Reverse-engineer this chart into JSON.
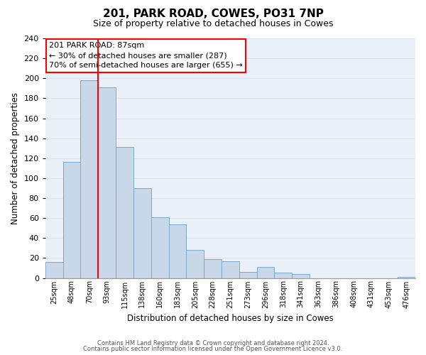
{
  "title": "201, PARK ROAD, COWES, PO31 7NP",
  "subtitle": "Size of property relative to detached houses in Cowes",
  "xlabel": "Distribution of detached houses by size in Cowes",
  "ylabel": "Number of detached properties",
  "bar_labels": [
    "25sqm",
    "48sqm",
    "70sqm",
    "93sqm",
    "115sqm",
    "138sqm",
    "160sqm",
    "183sqm",
    "205sqm",
    "228sqm",
    "251sqm",
    "273sqm",
    "296sqm",
    "318sqm",
    "341sqm",
    "363sqm",
    "386sqm",
    "408sqm",
    "431sqm",
    "453sqm",
    "476sqm"
  ],
  "bar_heights": [
    16,
    116,
    198,
    191,
    131,
    90,
    61,
    54,
    28,
    19,
    17,
    6,
    11,
    5,
    4,
    0,
    0,
    0,
    0,
    0,
    1
  ],
  "bar_color": "#c8d8e8",
  "bar_edge_color": "#7aa8cc",
  "ylim": [
    0,
    240
  ],
  "yticks": [
    0,
    20,
    40,
    60,
    80,
    100,
    120,
    140,
    160,
    180,
    200,
    220,
    240
  ],
  "vline_color": "red",
  "vline_x": 2.5,
  "annotation_title": "201 PARK ROAD: 87sqm",
  "annotation_line1": "← 30% of detached houses are smaller (287)",
  "annotation_line2": "70% of semi-detached houses are larger (655) →",
  "annotation_box_edge_color": "red",
  "footer1": "Contains HM Land Registry data © Crown copyright and database right 2024.",
  "footer2": "Contains public sector information licensed under the Open Government Licence v3.0.",
  "grid_color": "#d8e4f0",
  "background_color": "#eaf0f8"
}
